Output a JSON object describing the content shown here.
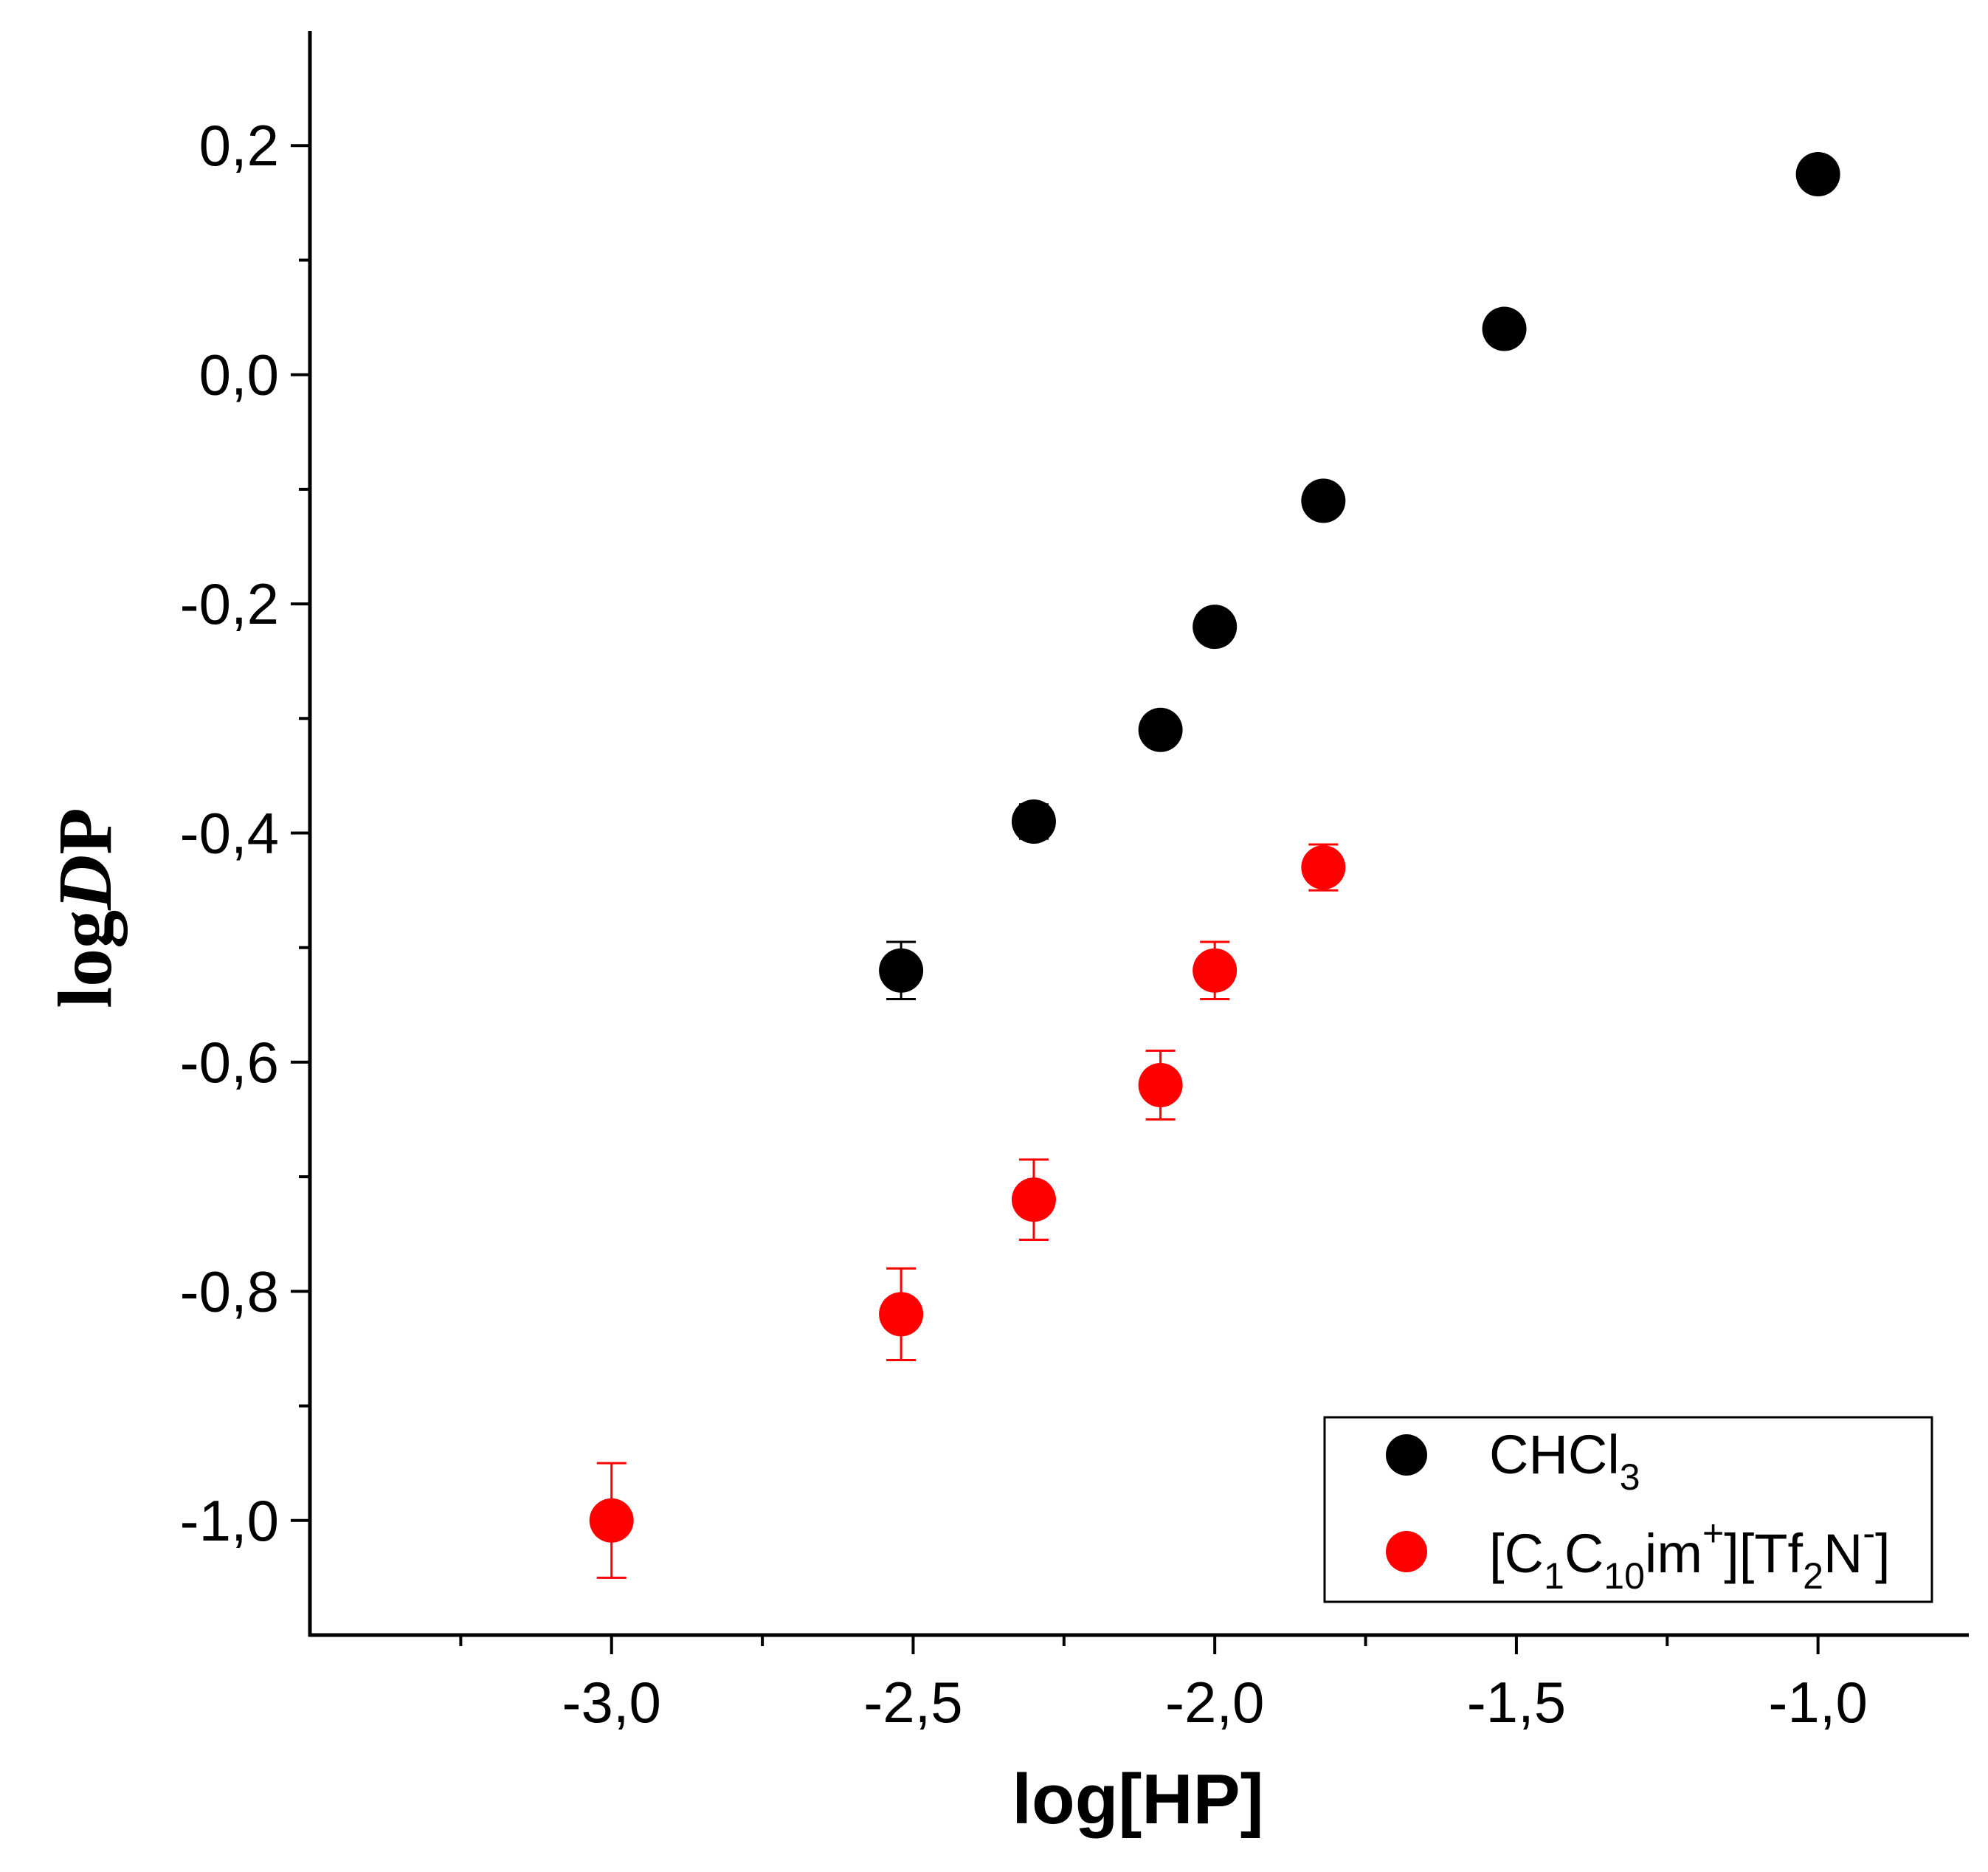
{
  "chart_data": {
    "type": "scatter",
    "xlabel": "log[HP]",
    "ylabel": {
      "prefix": "log",
      "italic": "D",
      "suffix": "P"
    },
    "xlim": [
      -3.5,
      -0.75
    ],
    "ylim": [
      -1.1,
      0.3
    ],
    "x_ticks": [
      -3.0,
      -2.5,
      -2.0,
      -1.5,
      -1.0
    ],
    "x_tick_labels": [
      "-3,0",
      "-2,5",
      "-2,0",
      "-1,5",
      "-1,0"
    ],
    "y_ticks": [
      -1.0,
      -0.8,
      -0.6,
      -0.4,
      -0.2,
      0.0,
      0.2
    ],
    "y_tick_labels": [
      "-1,0",
      "-0,8",
      "-0,6",
      "-0,4",
      "-0,2",
      "0,0",
      "0,2"
    ],
    "grid": false,
    "legend_position": "bottom-right",
    "series": [
      {
        "name": "CHCl3",
        "legend": {
          "main": "CHCl",
          "sub": "3"
        },
        "color": "#000000",
        "points": [
          {
            "x": -2.52,
            "y": -0.52,
            "err": 0.025
          },
          {
            "x": -2.3,
            "y": -0.39,
            "err": 0.015
          },
          {
            "x": -2.09,
            "y": -0.31,
            "err": 0.0
          },
          {
            "x": -2.0,
            "y": -0.22,
            "err": 0.0
          },
          {
            "x": -1.82,
            "y": -0.11,
            "err": 0.0
          },
          {
            "x": -1.52,
            "y": 0.04,
            "err": 0.0
          },
          {
            "x": -1.0,
            "y": 0.175,
            "err": 0.0
          }
        ]
      },
      {
        "name": "[C1C10im+][Tf2N-]",
        "legend": {
          "parts": [
            "[C",
            "1",
            "C",
            "10",
            "im",
            "+",
            "][Tf",
            "2",
            "N",
            "-",
            "]"
          ]
        },
        "color": "#ff0000",
        "points": [
          {
            "x": -3.0,
            "y": -1.0,
            "err": 0.05
          },
          {
            "x": -2.52,
            "y": -0.82,
            "err": 0.04
          },
          {
            "x": -2.3,
            "y": -0.72,
            "err": 0.035
          },
          {
            "x": -2.09,
            "y": -0.62,
            "err": 0.03
          },
          {
            "x": -2.0,
            "y": -0.52,
            "err": 0.025
          },
          {
            "x": -1.82,
            "y": -0.43,
            "err": 0.02
          }
        ]
      }
    ]
  }
}
